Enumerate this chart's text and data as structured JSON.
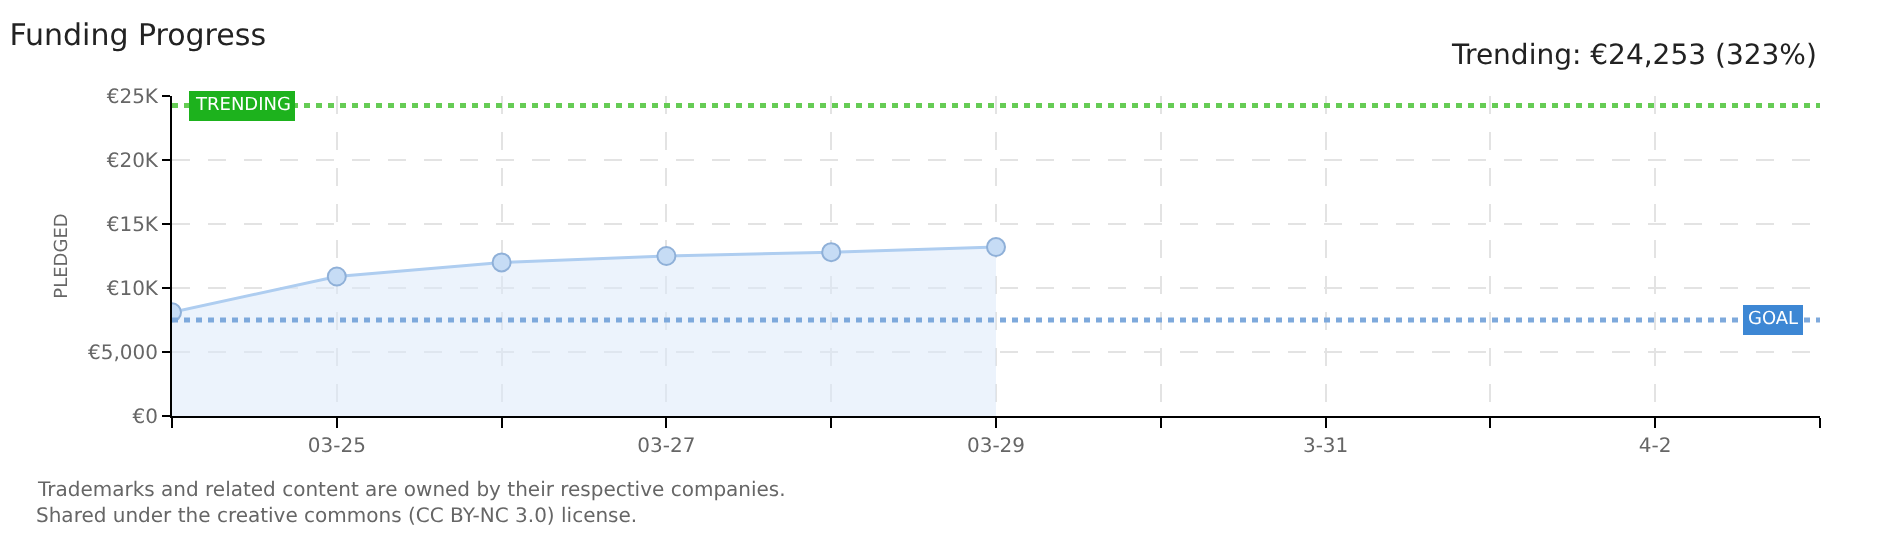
{
  "chart_data": {
    "type": "area",
    "title": "Funding Progress",
    "ylabel": "PLEDGED",
    "annotations": [
      "Trending: €24,253 (323%)",
      "Trademarks and related content are owned by their respective companies.",
      "Shared under the creative commons (CC BY-NC 3.0) license."
    ],
    "x": [
      "--03-24",
      "--03-25",
      "--03-26",
      "--03-27",
      "--03-28",
      "--03-29"
    ],
    "series": [
      {
        "color": "#aecdf0",
        "values": [
          8100,
          10900,
          12000,
          12500,
          12800,
          13200
        ]
      }
    ],
    "xlim": [
      "--03-24",
      "--04-03"
    ],
    "xticks": [
      {
        "value": "--03-24",
        "label": null
      },
      {
        "value": "--03-25",
        "label": "03-25"
      },
      {
        "value": "--03-26",
        "label": null
      },
      {
        "value": "--03-27",
        "label": "03-27"
      },
      {
        "value": "--03-28",
        "label": null
      },
      {
        "value": "--03-29",
        "label": "03-29"
      },
      {
        "value": "--03-30",
        "label": null
      },
      {
        "value": "--03-31",
        "label": "3-31"
      },
      {
        "value": "--04-01",
        "label": null
      },
      {
        "value": "--04-02",
        "label": "4-2"
      },
      {
        "value": "--04-03",
        "label": null
      }
    ],
    "ylim": [
      0,
      25000
    ],
    "yticks": [
      {
        "value": 0,
        "label": "€0"
      },
      {
        "value": 5000,
        "label": "€5,000"
      },
      {
        "value": 10000,
        "label": "€10K"
      },
      {
        "value": 15000,
        "label": "€15K"
      },
      {
        "value": 20000,
        "label": "€20K"
      },
      {
        "value": 25000,
        "label": "€25K"
      }
    ],
    "ref_lines": [
      {
        "axis": "y",
        "value": 24253,
        "label": "TRENDING",
        "color": "#66cc55",
        "line_style": "dotted"
      },
      {
        "axis": "y",
        "value": 7500,
        "label": "GOAL",
        "color": "#7ea9dc",
        "line_style": "dotted"
      }
    ],
    "grid": true,
    "marker": "circle"
  }
}
